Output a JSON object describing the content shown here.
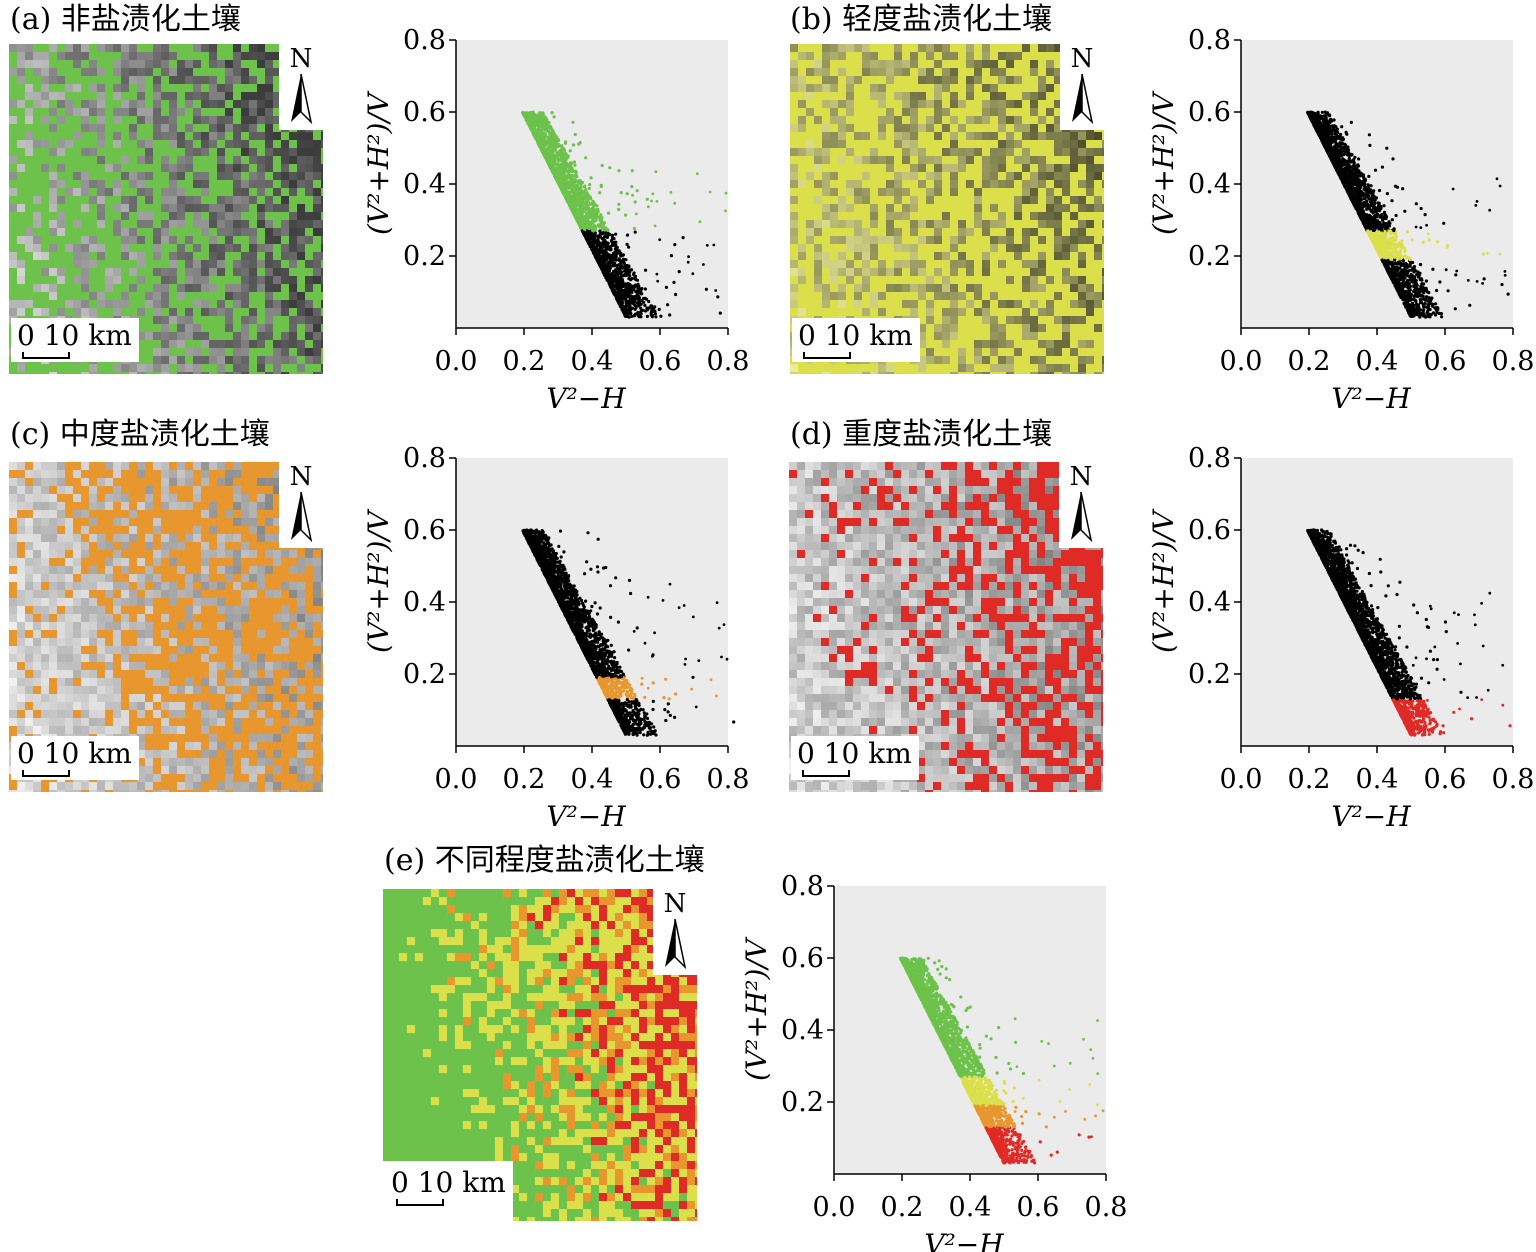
{
  "colors": {
    "nonsaline": "#6cc24a",
    "light": "#dbe04a",
    "moderate": "#e8962e",
    "heavy": "#e02a26",
    "background_points": "#000000",
    "plot_bg": "#ebebeb"
  },
  "panels": [
    {
      "key": "a",
      "title": "(a) 非盐渍化土壤",
      "highlight": "nonsaline",
      "map_tint": "green"
    },
    {
      "key": "b",
      "title": "(b) 轻度盐渍化土壤",
      "highlight": "light",
      "map_tint": "yellow"
    },
    {
      "key": "c",
      "title": "(c) 中度盐渍化土壤",
      "highlight": "moderate",
      "map_tint": "orange"
    },
    {
      "key": "d",
      "title": "(d) 重度盐渍化土壤",
      "highlight": "heavy",
      "map_tint": "red"
    },
    {
      "key": "e",
      "title": "(e) 不同程度盐渍化土壤",
      "highlight": "all",
      "map_tint": "classified"
    }
  ],
  "map": {
    "north_label": "N",
    "north_icon": "north-arrow-icon",
    "scale_label": "0 10 km"
  },
  "chart_data": [
    {
      "type": "scatter",
      "panel": "a",
      "xlabel": "V²−H",
      "ylabel": "(V²+H²)/V",
      "xlim": [
        0.0,
        0.8
      ],
      "ylim": [
        0.0,
        0.8
      ],
      "xticks": [
        "0.0",
        "0.2",
        "0.4",
        "0.6",
        "0.8"
      ],
      "yticks": [
        "0.2",
        "0.4",
        "0.6",
        "0.8"
      ],
      "highlighted_class": "nonsaline",
      "class_bands_y": {
        "nonsaline": [
          0.27,
          0.62
        ],
        "light": [
          0.19,
          0.27
        ],
        "moderate": [
          0.13,
          0.19
        ],
        "heavy": [
          0.03,
          0.13
        ]
      }
    },
    {
      "type": "scatter",
      "panel": "b",
      "xlabel": "V²−H",
      "ylabel": "(V²+H²)/V",
      "xlim": [
        0.0,
        0.8
      ],
      "ylim": [
        0.0,
        0.8
      ],
      "xticks": [
        "0.0",
        "0.2",
        "0.4",
        "0.6",
        "0.8"
      ],
      "yticks": [
        "0.2",
        "0.4",
        "0.6",
        "0.8"
      ],
      "highlighted_class": "light",
      "class_bands_y": {
        "nonsaline": [
          0.27,
          0.62
        ],
        "light": [
          0.19,
          0.27
        ],
        "moderate": [
          0.13,
          0.19
        ],
        "heavy": [
          0.03,
          0.13
        ]
      }
    },
    {
      "type": "scatter",
      "panel": "c",
      "xlabel": "V²−H",
      "ylabel": "(V²+H²)/V",
      "xlim": [
        0.0,
        0.8
      ],
      "ylim": [
        0.0,
        0.8
      ],
      "xticks": [
        "0.0",
        "0.2",
        "0.4",
        "0.6",
        "0.8"
      ],
      "yticks": [
        "0.2",
        "0.4",
        "0.6",
        "0.8"
      ],
      "highlighted_class": "moderate",
      "class_bands_y": {
        "nonsaline": [
          0.27,
          0.62
        ],
        "light": [
          0.19,
          0.27
        ],
        "moderate": [
          0.13,
          0.19
        ],
        "heavy": [
          0.03,
          0.13
        ]
      }
    },
    {
      "type": "scatter",
      "panel": "d",
      "xlabel": "V²−H",
      "ylabel": "(V²+H²)/V",
      "xlim": [
        0.0,
        0.8
      ],
      "ylim": [
        0.0,
        0.8
      ],
      "xticks": [
        "0.0",
        "0.2",
        "0.4",
        "0.6",
        "0.8"
      ],
      "yticks": [
        "0.2",
        "0.4",
        "0.6",
        "0.8"
      ],
      "highlighted_class": "heavy",
      "class_bands_y": {
        "nonsaline": [
          0.27,
          0.62
        ],
        "light": [
          0.19,
          0.27
        ],
        "moderate": [
          0.13,
          0.19
        ],
        "heavy": [
          0.03,
          0.13
        ]
      }
    },
    {
      "type": "scatter",
      "panel": "e",
      "xlabel": "V²−H",
      "ylabel": "(V²+H²)/V",
      "xlim": [
        0.0,
        0.8
      ],
      "ylim": [
        0.0,
        0.8
      ],
      "xticks": [
        "0.0",
        "0.2",
        "0.4",
        "0.6",
        "0.8"
      ],
      "yticks": [
        "0.2",
        "0.4",
        "0.6",
        "0.8"
      ],
      "highlighted_class": "all",
      "class_bands_y": {
        "nonsaline": [
          0.27,
          0.62
        ],
        "light": [
          0.19,
          0.27
        ],
        "moderate": [
          0.13,
          0.19
        ],
        "heavy": [
          0.03,
          0.13
        ]
      }
    }
  ]
}
